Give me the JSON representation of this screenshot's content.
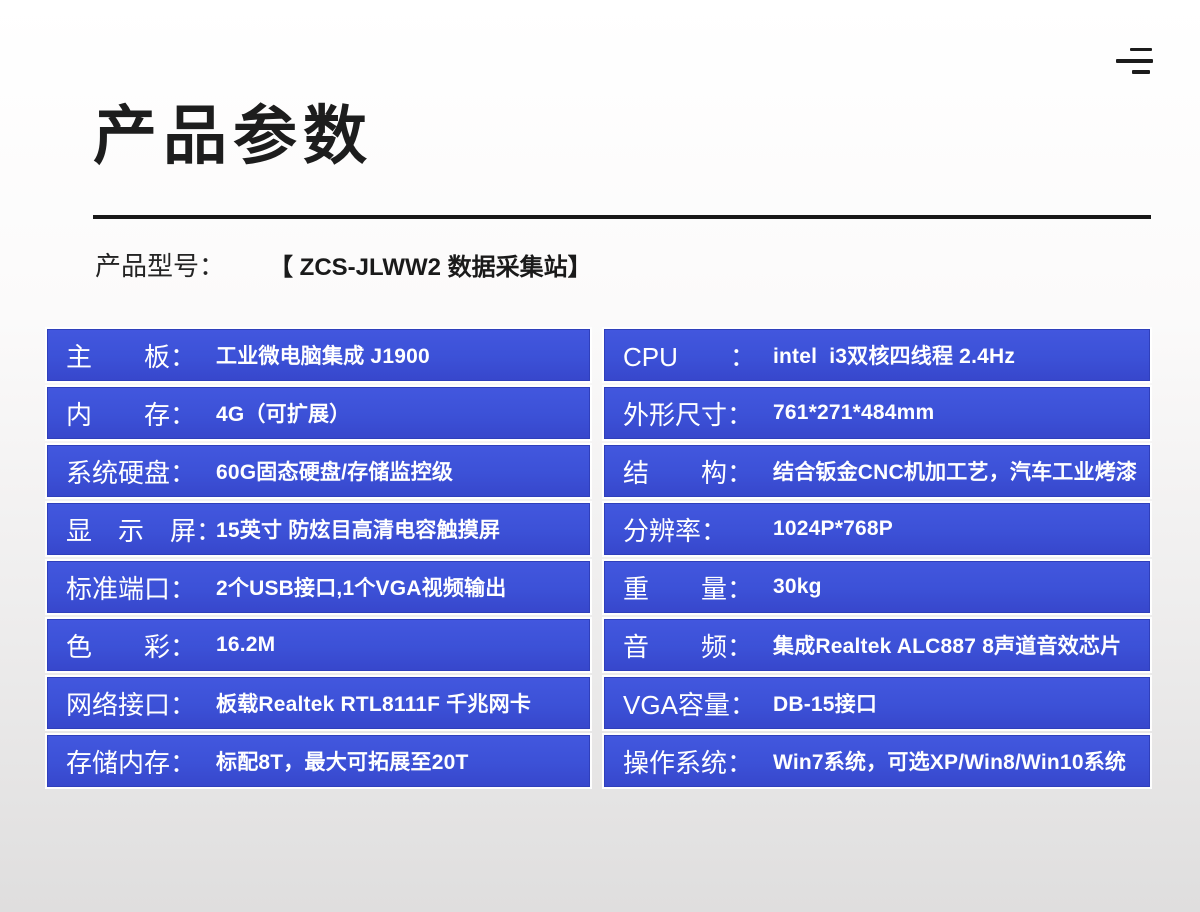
{
  "header": {
    "menu_icon": "menu-lines-icon",
    "title": "产品参数",
    "model_label": "产品型号：",
    "model_value": "【 ZCS-JLWW2 数据采集站】"
  },
  "colors": {
    "box_fill": "#3d52d9",
    "box_border": "#2f3fbb",
    "box_text": "#ffffff",
    "title_text": "#1d1d1d",
    "background_bottom": "#dfdede"
  },
  "specs": {
    "left": [
      {
        "label": "主　　板：",
        "value": "工业微电脑集成 J1900"
      },
      {
        "label": "内　　存：",
        "value": "4G（可扩展）"
      },
      {
        "label": "系统硬盘：",
        "value": "60G固态硬盘/存储监控级"
      },
      {
        "label": "显　示　屏：",
        "value": "15英寸 防炫目高清电容触摸屏"
      },
      {
        "label": "标准端口：",
        "value": "2个USB接口,1个VGA视频输出"
      },
      {
        "label": "色　　彩：",
        "value": "16.2M"
      },
      {
        "label": "网络接口：",
        "value": "板载Realtek RTL8111F 千兆网卡"
      },
      {
        "label": "存储内存：",
        "value": "标配8T，最大可拓展至20T"
      }
    ],
    "right": [
      {
        "label": "CPU　　：",
        "value": "intel  i3双核四线程 2.4Hz"
      },
      {
        "label": "外形尺寸：",
        "value": "761*271*484mm"
      },
      {
        "label": "结　　构：",
        "value": "结合钣金CNC机加工艺，汽车工业烤漆"
      },
      {
        "label": "分辨率：",
        "value": "1024P*768P"
      },
      {
        "label": "重　　量：",
        "value": "30kg"
      },
      {
        "label": "音　　频：",
        "value": "集成Realtek ALC887 8声道音效芯片"
      },
      {
        "label": "VGA容量：",
        "value": "DB-15接口"
      },
      {
        "label": "操作系统：",
        "value": "Win7系统，可选XP/Win8/Win10系统"
      }
    ]
  }
}
